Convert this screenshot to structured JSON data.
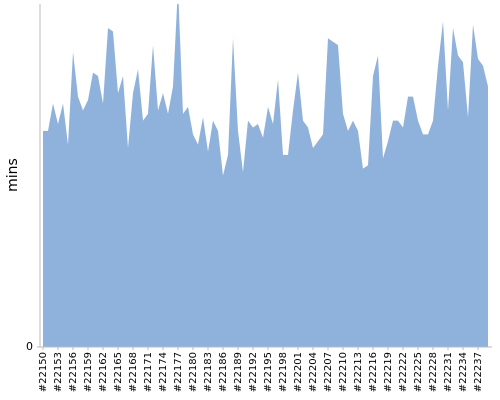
{
  "chart_data": {
    "type": "area",
    "y_label": "mins",
    "color": "#8fb2dc",
    "categories": [
      "#22150",
      null,
      null,
      "#22153",
      null,
      null,
      "#22156",
      null,
      null,
      "#22159",
      null,
      null,
      "#22162",
      null,
      null,
      "#22165",
      null,
      null,
      "#22168",
      null,
      null,
      "#22171",
      null,
      null,
      "#22174",
      null,
      null,
      "#22177",
      null,
      null,
      "#22180",
      null,
      null,
      "#22183",
      null,
      null,
      "#22186",
      null,
      null,
      "#22189",
      null,
      null,
      "#22192",
      null,
      null,
      "#22195",
      null,
      null,
      "#22198",
      null,
      null,
      "#22201",
      null,
      null,
      "#22204",
      null,
      null,
      "#22207",
      null,
      null,
      "#22210",
      null,
      null,
      "#22213",
      null,
      null,
      "#22216",
      null,
      null,
      "#22219",
      null,
      null,
      "#22222",
      null,
      null,
      "#22225",
      null,
      null,
      "#22228",
      null,
      null,
      "#22231",
      null,
      null,
      "#22234",
      null,
      null,
      "#22237",
      null,
      null
    ],
    "values": [
      63,
      63,
      71,
      65,
      71,
      59,
      86,
      73,
      69,
      72,
      80,
      79,
      71,
      93,
      92,
      74,
      79,
      58,
      74,
      81,
      66,
      68,
      88,
      69,
      74,
      68,
      76,
      105,
      68,
      70,
      62,
      59,
      67,
      57,
      66,
      63,
      50,
      56,
      90,
      63,
      51,
      66,
      64,
      65,
      61,
      70,
      65,
      78,
      56,
      56,
      69,
      80,
      66,
      64,
      58,
      60,
      62,
      90,
      89,
      88,
      68,
      63,
      66,
      63,
      52,
      53,
      79,
      85,
      55,
      60,
      66,
      66,
      64,
      73,
      73,
      66,
      62,
      62,
      66,
      82,
      95,
      69,
      93,
      85,
      83,
      67,
      94,
      84,
      82,
      76
    ],
    "ylim": [
      0,
      100
    ],
    "yticks": [
      0
    ]
  }
}
